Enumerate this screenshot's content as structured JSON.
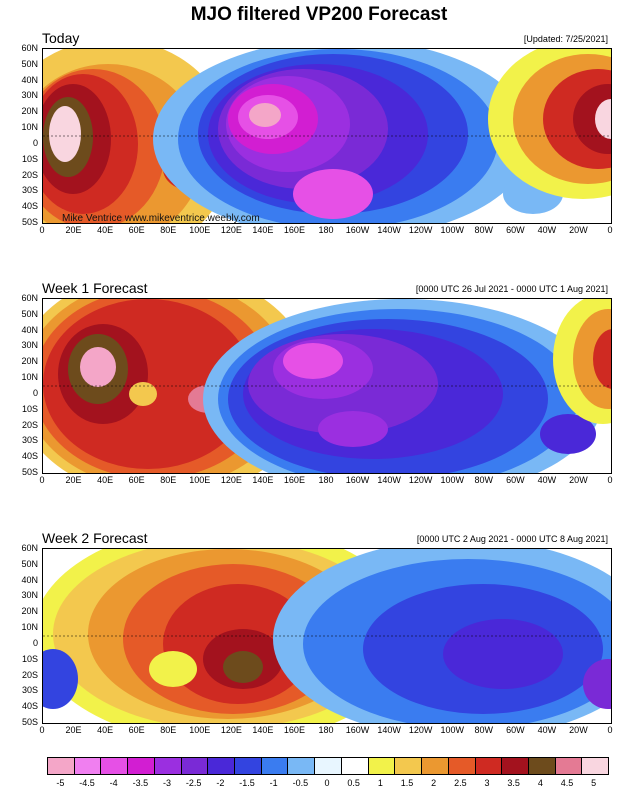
{
  "title": "MJO filtered VP200 Forecast",
  "credit": "Mike Ventrice www.mikeventrice.weebly.com",
  "lat_labels": [
    "60N",
    "50N",
    "40N",
    "30N",
    "20N",
    "10N",
    "0",
    "10S",
    "20S",
    "30S",
    "40S",
    "50S"
  ],
  "lon_labels": [
    "0",
    "20E",
    "40E",
    "60E",
    "80E",
    "100E",
    "120E",
    "140E",
    "160E",
    "180",
    "160W",
    "140W",
    "120W",
    "100W",
    "80W",
    "60W",
    "40W",
    "20W",
    "0"
  ],
  "panels": [
    {
      "title": "Today",
      "note": "[Updated: 7/25/2021]"
    },
    {
      "title": "Week 1 Forecast",
      "note": "[0000 UTC 26 Jul 2021 - 0000 UTC 1 Aug 2021]"
    },
    {
      "title": "Week 2 Forecast",
      "note": "[0000 UTC 2 Aug 2021 - 0000 UTC 8 Aug 2021]"
    }
  ],
  "colorbar": {
    "labels": [
      "-5",
      "-4.5",
      "-4",
      "-3.5",
      "-3",
      "-2.5",
      "-2",
      "-1.5",
      "-1",
      "-0.5",
      "0",
      "0.5",
      "1",
      "1.5",
      "2",
      "2.5",
      "3",
      "3.5",
      "4",
      "4.5",
      "5"
    ],
    "colors": [
      "#f4a6c8",
      "#f07ff0",
      "#e650e6",
      "#d21ed2",
      "#9b2fe0",
      "#7a2ad6",
      "#4a28d8",
      "#3344e0",
      "#3a7cf0",
      "#79b8f5",
      "#e8f6ff",
      "#ffffff",
      "#f2f24a",
      "#f3c84e",
      "#eb9830",
      "#e55a28",
      "#cf2a22",
      "#a3121e",
      "#6d4b1c",
      "#e47a94",
      "#f9d6e0"
    ]
  }
}
